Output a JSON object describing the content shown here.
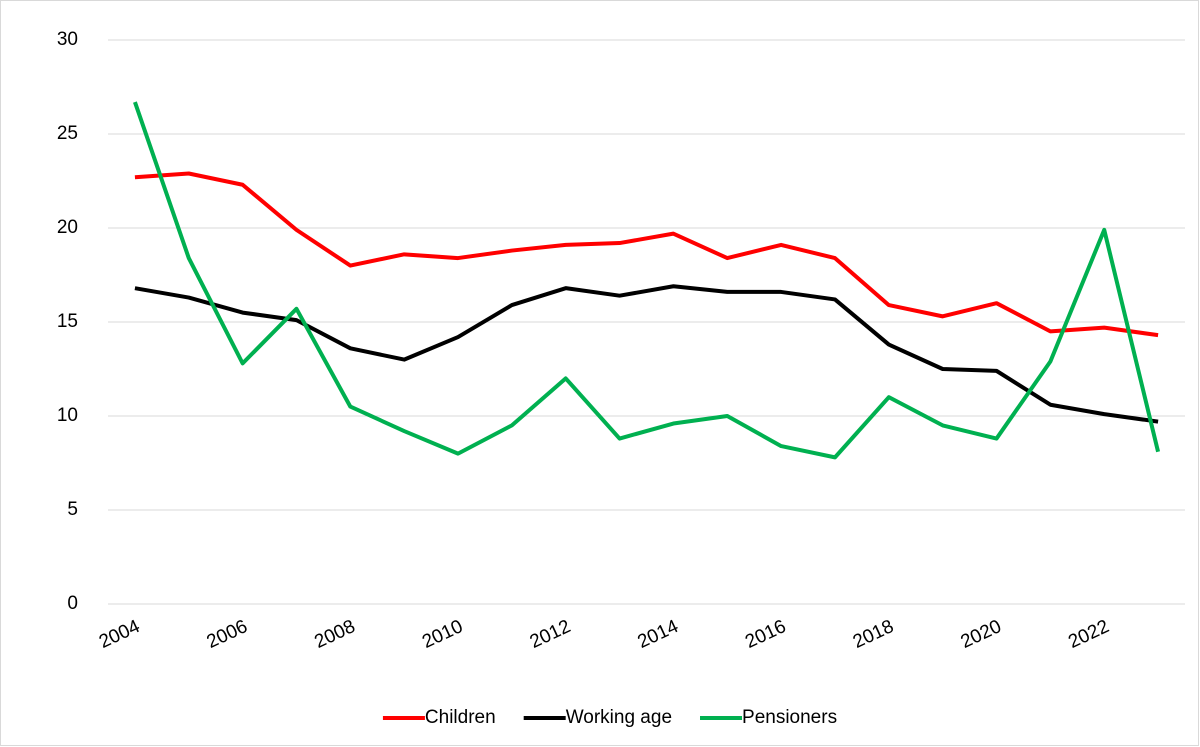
{
  "chart_data": {
    "type": "line",
    "x": [
      2004,
      2005,
      2006,
      2007,
      2008,
      2009,
      2010,
      2011,
      2012,
      2013,
      2014,
      2015,
      2016,
      2017,
      2018,
      2019,
      2020,
      2021,
      2022,
      2023
    ],
    "series": [
      {
        "name": "Children",
        "color": "#ff0000",
        "values": [
          22.7,
          22.9,
          22.3,
          19.9,
          18.0,
          18.6,
          18.4,
          18.8,
          19.1,
          19.2,
          19.7,
          18.4,
          19.1,
          18.4,
          15.9,
          15.3,
          16.0,
          14.5,
          14.7,
          14.3
        ]
      },
      {
        "name": "Working age",
        "color": "#000000",
        "values": [
          16.8,
          16.3,
          15.5,
          15.1,
          13.6,
          13.0,
          14.2,
          15.9,
          16.8,
          16.4,
          16.9,
          16.6,
          16.6,
          16.2,
          13.8,
          12.5,
          12.4,
          10.6,
          10.1,
          9.7
        ]
      },
      {
        "name": "Pensioners",
        "color": "#00b050",
        "values": [
          26.7,
          18.4,
          12.8,
          15.7,
          10.5,
          9.2,
          8.0,
          9.5,
          12.0,
          8.8,
          9.6,
          10.0,
          8.4,
          7.8,
          11.0,
          9.5,
          8.8,
          12.9,
          19.9,
          8.1
        ]
      }
    ],
    "xlim": [
      2003.5,
      2023.5
    ],
    "xticks": [
      2004,
      2006,
      2008,
      2010,
      2012,
      2014,
      2016,
      2018,
      2020,
      2022
    ],
    "ylim": [
      0,
      30
    ],
    "yticks": [
      0,
      5,
      10,
      15,
      20,
      25,
      30
    ],
    "grid": true,
    "legend": "bottom"
  }
}
